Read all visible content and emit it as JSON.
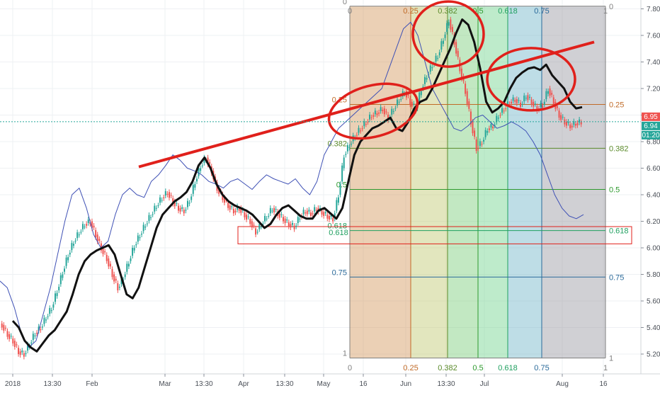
{
  "chart_data": {
    "type": "candlestick",
    "y_axis": {
      "range": [
        5.12,
        7.84
      ],
      "ticks": [
        "5.20",
        "5.40",
        "5.60",
        "5.80",
        "6.00",
        "6.20",
        "6.40",
        "6.60",
        "6.80",
        "7.00",
        "7.20",
        "7.40",
        "7.60",
        "7.80"
      ],
      "position": "right"
    },
    "x_axis": {
      "ticks": [
        "2018",
        "13:30",
        "Feb",
        "Mar",
        "13:30",
        "Apr",
        "13:30",
        "May",
        "16",
        "Jun",
        "13:30",
        "Jul",
        "Aug",
        "16"
      ]
    },
    "price_labels": {
      "last_price": "6.95",
      "bid": "6.94",
      "countdown": "01:20"
    },
    "colors": {
      "up": "#26a69a",
      "down": "#ef5350",
      "black_line": "#111111",
      "blue_line": "#3f51b5",
      "trend": "#e0201b",
      "circle": "#e0201b",
      "fib_0": "#7f7f7f",
      "fib_025": "#c06a27",
      "fib_0382": "#5a8a2a",
      "fib_05": "#2e9a2e",
      "fib_0618": "#20a060",
      "fib_075": "#2a6a9a",
      "fib_1": "#7f7f7f"
    },
    "fib_retracement": {
      "levels": [
        {
          "ratio": "0",
          "price": 7.82
        },
        {
          "ratio": "0.25",
          "price": 7.08
        },
        {
          "ratio": "0.382",
          "price": 6.75
        },
        {
          "ratio": "0.5",
          "price": 6.44
        },
        {
          "ratio": "0.618",
          "price": 6.13
        },
        {
          "ratio": "0.75",
          "price": 5.78
        },
        {
          "ratio": "1",
          "price": 5.17
        }
      ]
    },
    "fib_timezones": [
      "0",
      "0.25",
      "0.382",
      "0.5",
      "0.618",
      "0.75",
      "1"
    ],
    "support_box_label": "0.618",
    "close_series": [
      5.42,
      5.35,
      5.3,
      5.22,
      5.2,
      5.28,
      5.36,
      5.4,
      5.48,
      5.55,
      5.68,
      5.82,
      5.95,
      6.05,
      6.12,
      6.18,
      6.2,
      6.1,
      6.0,
      5.92,
      5.8,
      5.7,
      5.78,
      5.9,
      6.02,
      6.1,
      6.18,
      6.25,
      6.32,
      6.38,
      6.42,
      6.35,
      6.3,
      6.28,
      6.36,
      6.5,
      6.62,
      6.68,
      6.58,
      6.45,
      6.38,
      6.32,
      6.28,
      6.3,
      6.25,
      6.2,
      6.12,
      6.18,
      6.24,
      6.3,
      6.26,
      6.22,
      6.18,
      6.16,
      6.24,
      6.28,
      6.26,
      6.3,
      6.27,
      6.24,
      6.22,
      6.4,
      6.7,
      6.78,
      6.85,
      6.9,
      6.95,
      7.0,
      7.02,
      7.05,
      6.98,
      7.05,
      7.12,
      7.18,
      7.1,
      7.05,
      7.2,
      7.3,
      7.38,
      7.45,
      7.58,
      7.72,
      7.55,
      7.35,
      7.18,
      6.95,
      6.75,
      6.8,
      6.9,
      6.92,
      7.0,
      7.05,
      7.1,
      7.12,
      7.08,
      7.15,
      7.1,
      7.05,
      7.08,
      7.2,
      7.1,
      7.0,
      6.95,
      6.92,
      6.94,
      6.95
    ],
    "black_line": [
      5.45,
      5.4,
      5.3,
      5.25,
      5.22,
      5.28,
      5.34,
      5.38,
      5.45,
      5.52,
      5.65,
      5.8,
      5.9,
      5.95,
      5.98,
      6.0,
      6.02,
      5.95,
      5.8,
      5.65,
      5.62,
      5.7,
      5.85,
      6.0,
      6.15,
      6.25,
      6.3,
      6.35,
      6.38,
      6.42,
      6.5,
      6.62,
      6.68,
      6.6,
      6.48,
      6.4,
      6.35,
      6.32,
      6.3,
      6.28,
      6.25,
      6.2,
      6.15,
      6.18,
      6.25,
      6.3,
      6.32,
      6.28,
      6.24,
      6.22,
      6.22,
      6.28,
      6.3,
      6.26,
      6.22,
      6.3,
      6.5,
      6.7,
      6.8,
      6.85,
      6.9,
      6.92,
      6.95,
      6.98,
      6.9,
      6.88,
      6.95,
      7.05,
      7.1,
      7.12,
      7.2,
      7.3,
      7.4,
      7.5,
      7.62,
      7.72,
      7.68,
      7.55,
      7.35,
      7.1,
      7.02,
      7.05,
      7.1,
      7.2,
      7.28,
      7.32,
      7.35,
      7.36,
      7.34,
      7.38,
      7.3,
      7.25,
      7.2,
      7.1,
      7.05,
      7.06
    ],
    "blue_line": [
      5.75,
      5.7,
      5.55,
      5.35,
      5.25,
      5.3,
      5.5,
      5.7,
      5.95,
      6.2,
      6.4,
      6.45,
      6.3,
      6.1,
      6.0,
      6.05,
      6.25,
      6.4,
      6.45,
      6.4,
      6.38,
      6.5,
      6.55,
      6.62,
      6.7,
      6.66,
      6.6,
      6.58,
      6.55,
      6.5,
      6.48,
      6.45,
      6.5,
      6.52,
      6.48,
      6.44,
      6.5,
      6.55,
      6.52,
      6.5,
      6.48,
      6.52,
      6.45,
      6.4,
      6.5,
      6.7,
      6.8,
      6.9,
      6.95,
      7.0,
      7.05,
      7.1,
      7.15,
      7.2,
      7.35,
      7.5,
      7.65,
      7.7,
      7.6,
      7.4,
      7.2,
      7.1,
      7.0,
      6.9,
      6.88,
      6.92,
      6.98,
      7.0,
      6.95,
      6.9,
      6.92,
      6.95,
      6.92,
      6.88,
      6.8,
      6.7,
      6.55,
      6.4,
      6.3,
      6.24,
      6.22,
      6.25
    ]
  }
}
